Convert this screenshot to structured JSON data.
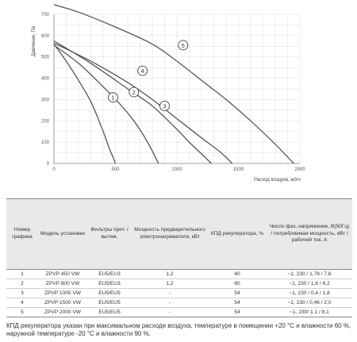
{
  "chart_data": {
    "type": "line",
    "xlabel": "Расход воздуха, м3/ч",
    "ylabel": "Давление, Па",
    "xlim": [
      0,
      2000
    ],
    "ylim": [
      0,
      700
    ],
    "xticks": [
      0,
      500,
      1000,
      1500,
      2000
    ],
    "yticks": [
      0,
      100,
      200,
      300,
      400,
      500,
      600,
      700
    ],
    "grid": true,
    "series": [
      {
        "name": "1",
        "x": [
          0,
          100,
          200,
          300,
          380,
          420,
          450,
          480,
          500
        ],
        "y": [
          560,
          480,
          390,
          290,
          180,
          120,
          70,
          30,
          0
        ]
      },
      {
        "name": "2",
        "x": [
          0,
          200,
          400,
          550,
          650,
          720,
          780,
          820,
          850
        ],
        "y": [
          555,
          470,
          360,
          270,
          200,
          140,
          80,
          35,
          0
        ]
      },
      {
        "name": "3",
        "x": [
          0,
          300,
          600,
          800,
          1000,
          1100,
          1200,
          1280
        ],
        "y": [
          575,
          470,
          350,
          270,
          160,
          100,
          45,
          0
        ]
      },
      {
        "name": "4",
        "x": [
          0,
          300,
          600,
          800,
          1000,
          1200,
          1350,
          1450
        ],
        "y": [
          565,
          480,
          380,
          300,
          210,
          120,
          55,
          0
        ]
      },
      {
        "name": "5",
        "x": [
          0,
          200,
          500,
          800,
          1000,
          1200,
          1400,
          1600,
          1800,
          1950
        ],
        "y": [
          745,
          710,
          640,
          560,
          480,
          390,
          300,
          200,
          90,
          0
        ]
      }
    ],
    "markers": [
      {
        "label": "1",
        "x": 480,
        "y": 310
      },
      {
        "label": "2",
        "x": 650,
        "y": 335
      },
      {
        "label": "3",
        "x": 900,
        "y": 270
      },
      {
        "label": "4",
        "x": 720,
        "y": 435
      },
      {
        "label": "5",
        "x": 1050,
        "y": 555
      }
    ]
  },
  "table": {
    "headers": [
      "Номер графика",
      "Модель установки",
      "Фильтры прит. / вытяж.",
      "Мощность предварительного электронагревателя, кВт",
      "КПД рекуператора, %",
      "Число фаз, напряжение, В(50Гц) / потребляемая мощность, кВт / рабочий ток, А"
    ],
    "rows": [
      [
        "1",
        "ZPVP 450 VW",
        "EU5/EU3",
        "1,2",
        "60",
        "~1, 230 / 1,78 / 7,8"
      ],
      [
        "2",
        "ZPVP 800 VW",
        "EU5/EU3",
        "1,2",
        "60",
        "~1, 230 / 1,8 / 8,2"
      ],
      [
        "3",
        "ZPVP 1000 VW",
        "EU5/EU5",
        "-",
        "54",
        "~1, 230 / 0,4 / 1,8"
      ],
      [
        "4",
        "ZPVP 1500 VW",
        "EU5/EU5",
        "-",
        "54",
        "~1, 230 / 0,46 / 2,0"
      ],
      [
        "5",
        "ZPVP 2000 VW",
        "EU5/EU5",
        "-",
        "54",
        "~1, 230/ 1,1 / 8,1"
      ]
    ]
  },
  "note": "КПД рекуператора указан при максимальном расходе воздуха, температуре в помещении +20 °С и влажности 60 %, наружной температуре -20 °С и влажности 90 %."
}
